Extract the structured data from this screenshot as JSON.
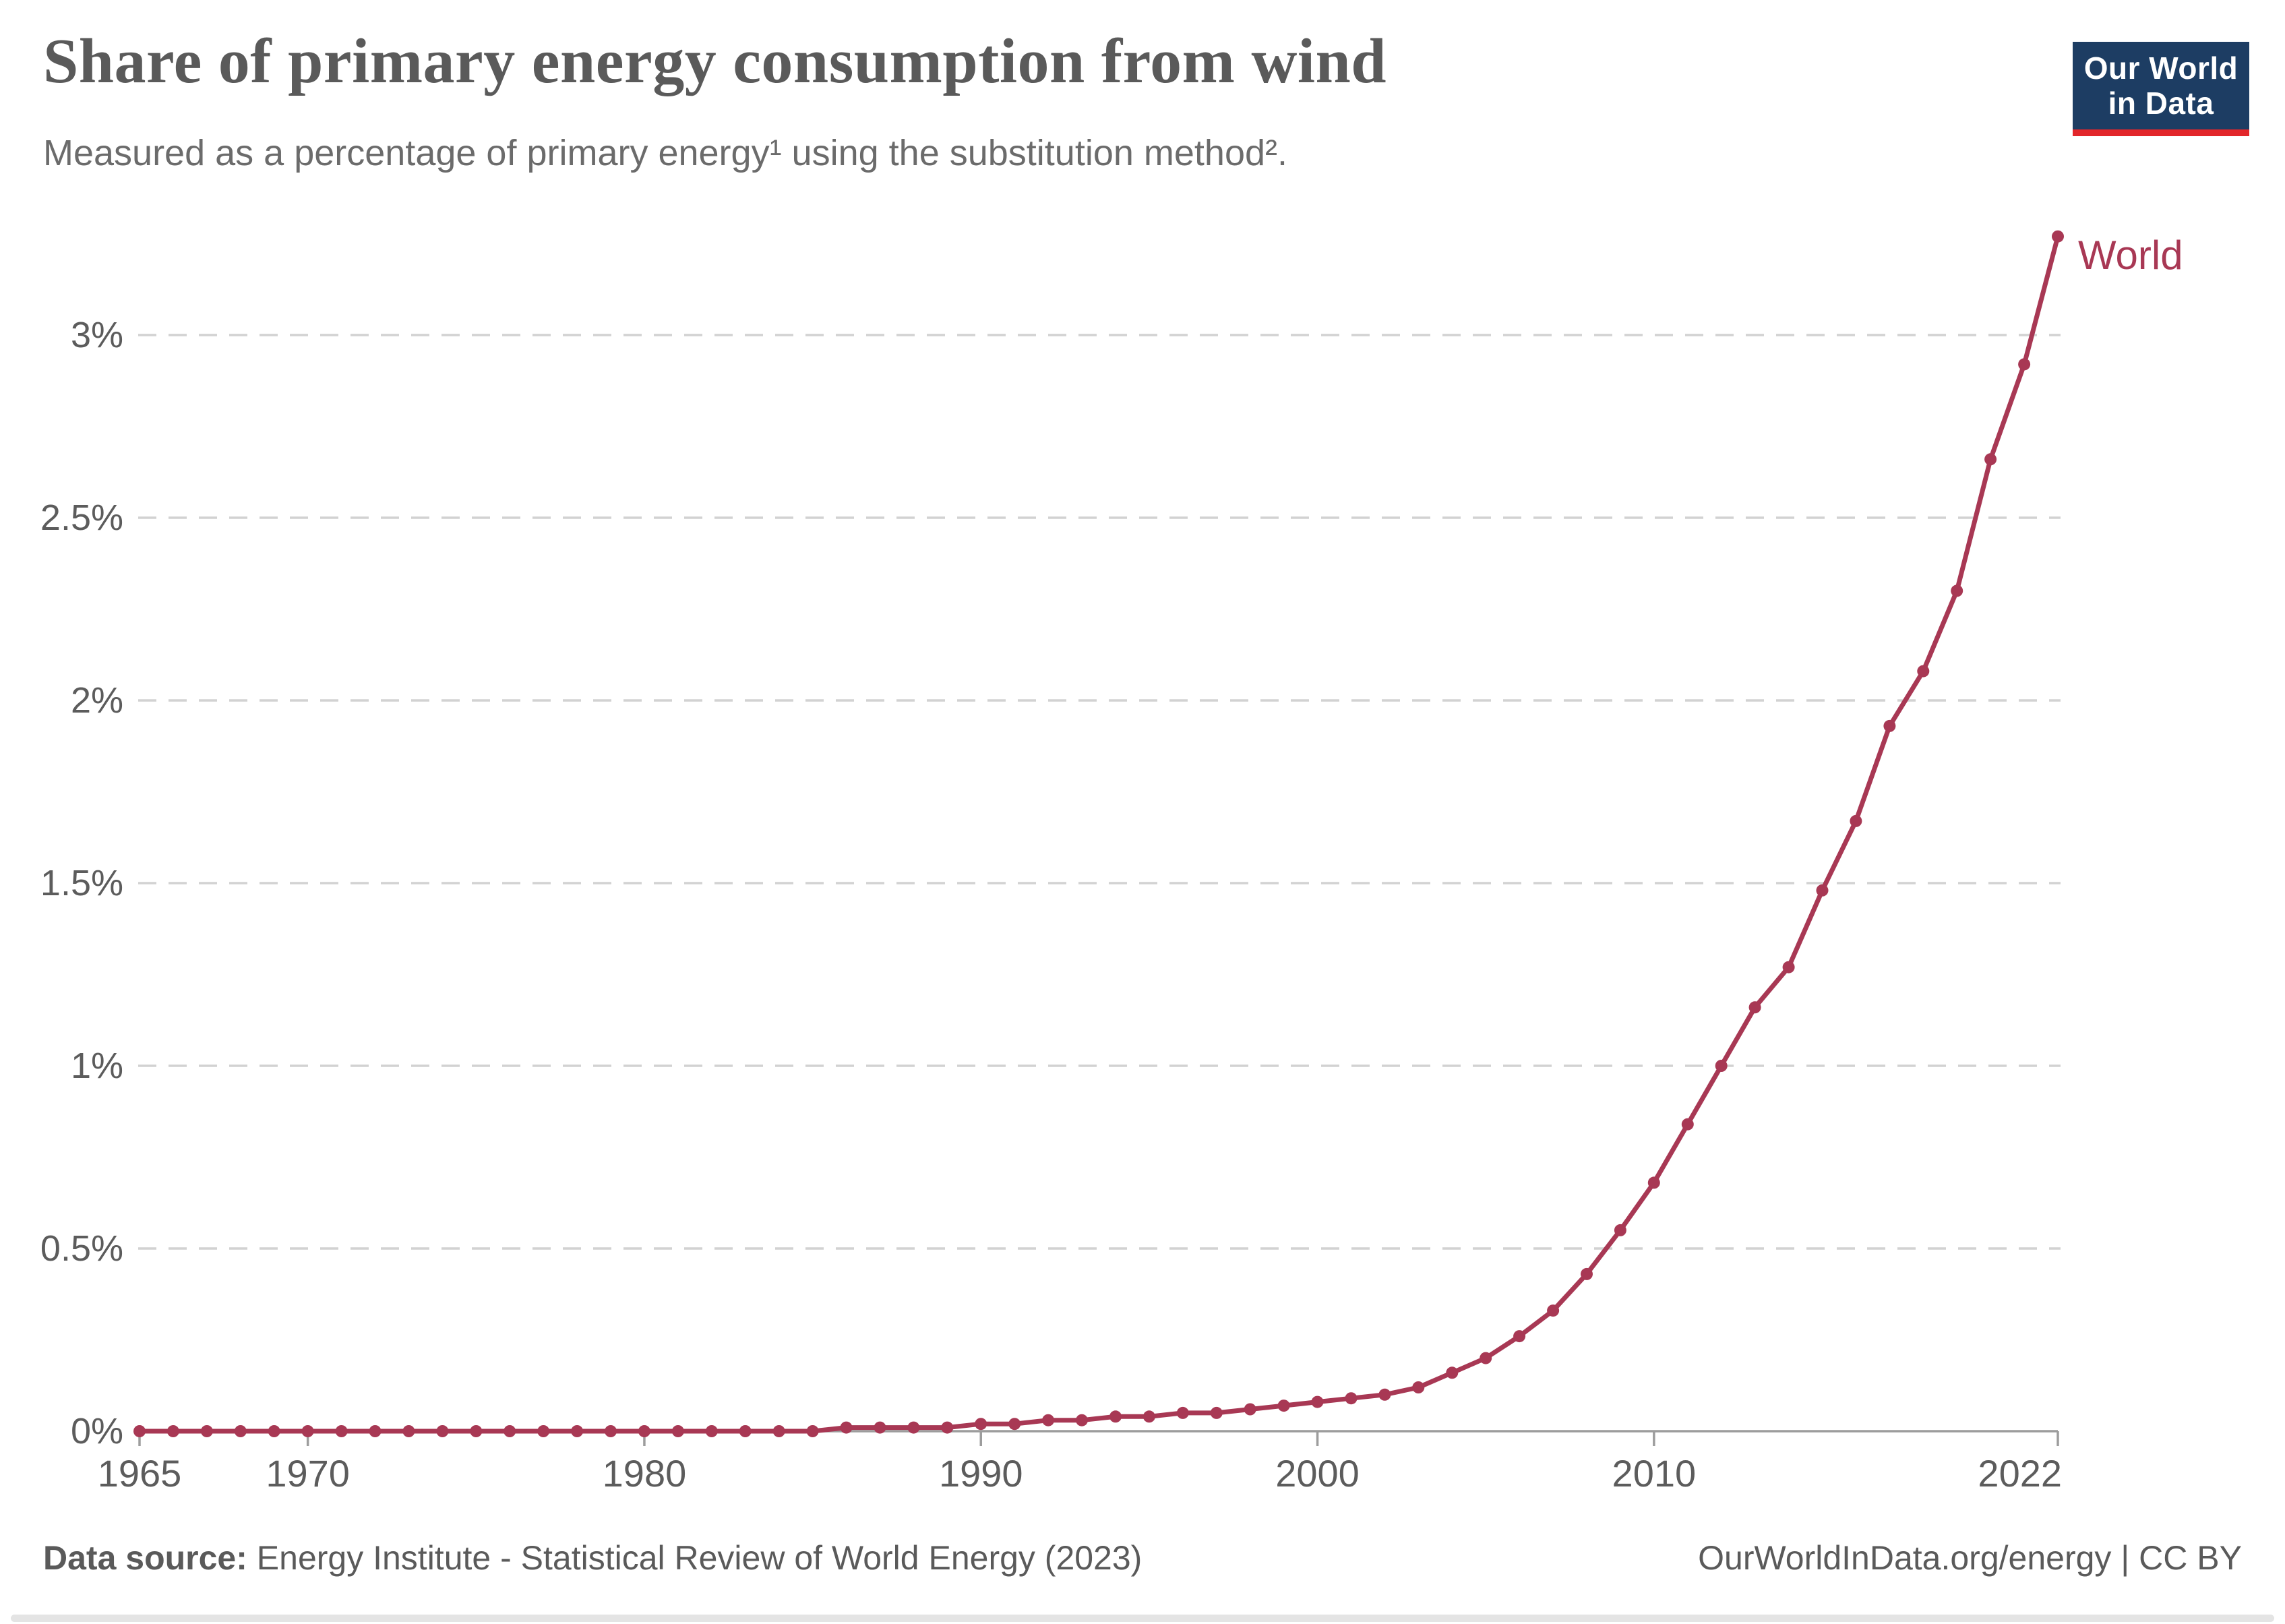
{
  "header": {
    "title": "Share of primary energy consumption from wind",
    "subtitle": "Measured as a percentage of primary energy¹ using the substitution method²."
  },
  "logo": {
    "line1": "Our World",
    "line2": "in Data",
    "bg_color": "#1d3d63",
    "bar_color": "#e2262a"
  },
  "chart_data": {
    "type": "line",
    "title": "Share of primary energy consumption from wind",
    "subtitle": "Measured as a percentage of primary energy using the substitution method.",
    "xlabel": "",
    "ylabel": "",
    "xlim": [
      1965,
      2022
    ],
    "ylim": [
      0,
      3.3
    ],
    "grid": "horizontal-dashed",
    "legend_position": "end-of-line-label",
    "axis_color": "#9d9d9d",
    "gridline_color": "#d2d2d2",
    "tick_label_color": "#5c5c5c",
    "x_ticks": {
      "values": [
        1965,
        1970,
        1980,
        1990,
        2000,
        2010,
        2022
      ],
      "labels": [
        "1965",
        "1970",
        "1980",
        "1990",
        "2000",
        "2010",
        "2022"
      ]
    },
    "y_ticks": {
      "values": [
        0,
        0.5,
        1,
        1.5,
        2,
        2.5,
        3
      ],
      "labels": [
        "0%",
        "0.5%",
        "1%",
        "1.5%",
        "2%",
        "2.5%",
        "3%"
      ]
    },
    "series": [
      {
        "name": "World",
        "color": "#a83854",
        "x": [
          1965,
          1966,
          1967,
          1968,
          1969,
          1970,
          1971,
          1972,
          1973,
          1974,
          1975,
          1976,
          1977,
          1978,
          1979,
          1980,
          1981,
          1982,
          1983,
          1984,
          1985,
          1986,
          1987,
          1988,
          1989,
          1990,
          1991,
          1992,
          1993,
          1994,
          1995,
          1996,
          1997,
          1998,
          1999,
          2000,
          2001,
          2002,
          2003,
          2004,
          2005,
          2006,
          2007,
          2008,
          2009,
          2010,
          2011,
          2012,
          2013,
          2014,
          2015,
          2016,
          2017,
          2018,
          2019,
          2020,
          2021,
          2022
        ],
        "values": [
          0,
          0,
          0,
          0,
          0,
          0,
          0,
          0,
          0,
          0,
          0,
          0,
          0,
          0,
          0,
          0,
          0,
          0,
          0,
          0,
          0,
          0.01,
          0.01,
          0.01,
          0.01,
          0.02,
          0.02,
          0.03,
          0.03,
          0.04,
          0.04,
          0.05,
          0.05,
          0.06,
          0.07,
          0.08,
          0.09,
          0.1,
          0.12,
          0.16,
          0.2,
          0.26,
          0.33,
          0.43,
          0.55,
          0.68,
          0.84,
          1.0,
          1.16,
          1.27,
          1.48,
          1.67,
          1.93,
          2.08,
          2.3,
          2.66,
          2.92,
          3.27
        ]
      }
    ]
  },
  "footer": {
    "source_label": "Data source:",
    "source": "Energy Institute - Statistical Review of World Energy (2023)",
    "credit": "OurWorldInData.org/energy | CC BY"
  }
}
